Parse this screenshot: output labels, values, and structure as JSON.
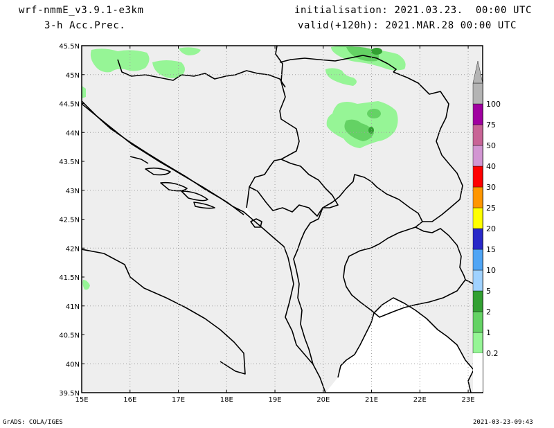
{
  "header": {
    "model": "wrf-nmmE_v3.9.1-e3km",
    "product": "3-h Acc.Prec.",
    "init": "initialisation: 2021.03.23.  00:00 UTC",
    "valid": "valid(+120h): 2021.MAR.28 00:00 UTC"
  },
  "footer": {
    "left": "GrADS: COLA/IGES",
    "right": "2021-03-23-09:43"
  },
  "map": {
    "lon_labels": [
      "15E",
      "16E",
      "17E",
      "18E",
      "19E",
      "20E",
      "21E",
      "22E",
      "23E"
    ],
    "lat_labels": [
      "45.5N",
      "45N",
      "44.5N",
      "44N",
      "43.5N",
      "43N",
      "42.5N",
      "42N",
      "41.5N",
      "41N",
      "40.5N",
      "40N",
      "39.5N"
    ],
    "land_color": "#eeeeee",
    "sea_color": "#ffffff",
    "grid_style": "dotted"
  },
  "legend": {
    "levels": [
      "0.2",
      "1",
      "2",
      "5",
      "10",
      "15",
      "20",
      "25",
      "30",
      "40",
      "50",
      "75",
      "100"
    ],
    "colors": [
      "#96f596",
      "#64d264",
      "#32a032",
      "#a0d2ff",
      "#50a5f5",
      "#2828c8",
      "#ffff00",
      "#ff9600",
      "#ff0000",
      "#d296d2",
      "#c86496",
      "#a000a0",
      "#b4b4b4"
    ]
  }
}
